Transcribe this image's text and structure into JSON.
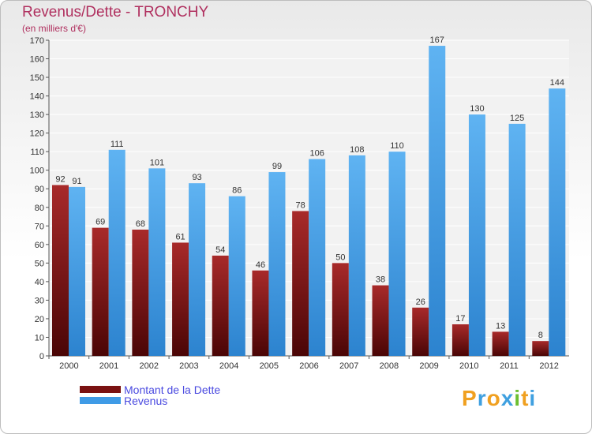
{
  "chart_data": {
    "type": "bar",
    "title": "Revenus/Dette - TRONCHY",
    "subtitle": "(en milliers d'€)",
    "categories": [
      "2000",
      "2001",
      "2002",
      "2003",
      "2004",
      "2005",
      "2006",
      "2007",
      "2008",
      "2009",
      "2010",
      "2011",
      "2012"
    ],
    "series": [
      {
        "name": "Montant de la Dette",
        "values": [
          92,
          69,
          68,
          61,
          54,
          46,
          78,
          50,
          38,
          26,
          17,
          13,
          8
        ],
        "color": "#7a1212"
      },
      {
        "name": "Revenus",
        "values": [
          91,
          111,
          101,
          93,
          86,
          99,
          106,
          108,
          110,
          167,
          130,
          125,
          144
        ],
        "color": "#3f9be6"
      }
    ],
    "ylim": [
      0,
      170
    ],
    "ytick_step": 10,
    "grid": true,
    "legend_position": "bottom-left"
  },
  "brand": {
    "text": "Proxiti",
    "letters": [
      {
        "ch": "P",
        "color": "#f0a020"
      },
      {
        "ch": "r",
        "color": "#3fa0e0"
      },
      {
        "ch": "o",
        "color": "#f0a020"
      },
      {
        "ch": "x",
        "color": "#3fa0e0"
      },
      {
        "ch": "i",
        "color": "#6cbf30"
      },
      {
        "ch": "t",
        "color": "#f0a020"
      },
      {
        "ch": "i",
        "color": "#3fa0e0"
      }
    ]
  }
}
